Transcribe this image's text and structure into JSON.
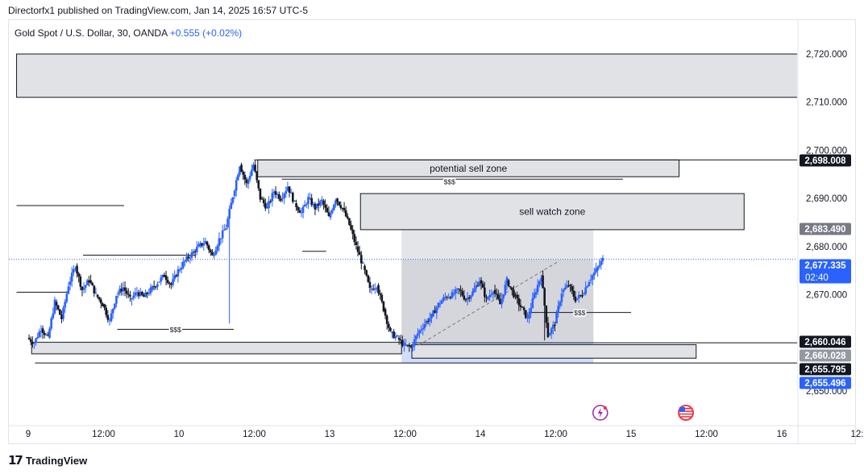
{
  "header": {
    "published": "Directorfx1 published on TradingView.com, Jan 14, 2025 16:57 UTC-5"
  },
  "legend": {
    "symbol": "Gold Spot / U.S. Dollar, 30, OANDA",
    "change": "+0.555 (+0.02%)"
  },
  "footer": {
    "brand": "TradingView"
  },
  "colors": {
    "up": "#2962ff",
    "down": "#131722",
    "zone_fill": "#e1e2e6",
    "zone_stroke": "#131722",
    "range_fill": "#b2b5be",
    "range_fill_blue": "#b3c6ff",
    "price_line": "#2962ff"
  },
  "chart_data": {
    "type": "candlestick",
    "symbol": "XAUUSD",
    "timeframe": "30",
    "ylim": [
      2649,
      2724
    ],
    "y_ticks": [
      2720,
      2710,
      2700,
      2690,
      2680,
      2670,
      2660,
      2650
    ],
    "y_tick_labels": [
      "2,720.000",
      "2,710.000",
      "2,700.000",
      "2,690.000",
      "2,680.000",
      "2,670.000",
      "",
      "2,650.000"
    ],
    "x_ticks": [
      {
        "t": 0,
        "label": "9"
      },
      {
        "t": 11,
        "label": "12:00"
      },
      {
        "t": 22,
        "label": "10"
      },
      {
        "t": 33,
        "label": "12:00"
      },
      {
        "t": 44,
        "label": "13"
      },
      {
        "t": 55,
        "label": "12:00"
      },
      {
        "t": 66,
        "label": "14"
      },
      {
        "t": 77,
        "label": "12:00"
      },
      {
        "t": 88,
        "label": "15"
      },
      {
        "t": 99,
        "label": "12:00"
      },
      {
        "t": 110,
        "label": "16"
      },
      {
        "t": 121,
        "label": "12:"
      }
    ],
    "x_range": [
      -1.7,
      122.5
    ],
    "ohlc_path": [
      [
        0,
        2661.0
      ],
      [
        1,
        2660.0
      ],
      [
        2,
        2663.0
      ],
      [
        3,
        2661.0
      ],
      [
        4,
        2668.5
      ],
      [
        5,
        2665.0
      ],
      [
        6,
        2672.0
      ],
      [
        7,
        2676.0
      ],
      [
        8,
        2671.0
      ],
      [
        9,
        2673.0
      ],
      [
        10,
        2670.0
      ],
      [
        11,
        2668.0
      ],
      [
        12,
        2664.5
      ],
      [
        13,
        2670.0
      ],
      [
        14,
        2671.5
      ],
      [
        15,
        2669.0
      ],
      [
        16,
        2670.5
      ],
      [
        17,
        2669.5
      ],
      [
        18,
        2671.0
      ],
      [
        19,
        2672.5
      ],
      [
        20,
        2674.0
      ],
      [
        21,
        2672.0
      ],
      [
        22,
        2675.0
      ],
      [
        23,
        2677.0
      ],
      [
        24,
        2678.5
      ],
      [
        25,
        2680.0
      ],
      [
        26,
        2681.0
      ],
      [
        27,
        2678.0
      ],
      [
        28,
        2681.5
      ],
      [
        29,
        2684.0
      ],
      [
        30,
        2690.5
      ],
      [
        31,
        2697.0
      ],
      [
        32,
        2693.0
      ],
      [
        33,
        2697.0
      ],
      [
        34,
        2690.0
      ],
      [
        35,
        2688.0
      ],
      [
        36,
        2691.5
      ],
      [
        37,
        2690.0
      ],
      [
        38,
        2692.5
      ],
      [
        39,
        2689.0
      ],
      [
        40,
        2687.0
      ],
      [
        41,
        2690.0
      ],
      [
        42,
        2688.0
      ],
      [
        43,
        2689.5
      ],
      [
        44,
        2686.0
      ],
      [
        45,
        2690.0
      ],
      [
        46,
        2688.0
      ],
      [
        47,
        2684.5
      ],
      [
        48,
        2680.0
      ],
      [
        49,
        2676.0
      ],
      [
        50,
        2671.0
      ],
      [
        51,
        2672.0
      ],
      [
        52,
        2667.0
      ],
      [
        53,
        2662.0
      ],
      [
        54,
        2661.0
      ],
      [
        55,
        2659.5
      ],
      [
        56,
        2659.0
      ],
      [
        57,
        2662.0
      ],
      [
        58,
        2664.0
      ],
      [
        59,
        2665.5
      ],
      [
        60,
        2668.0
      ],
      [
        61,
        2669.5
      ],
      [
        62,
        2670.0
      ],
      [
        63,
        2671.0
      ],
      [
        64,
        2669.0
      ],
      [
        65,
        2670.5
      ],
      [
        66,
        2673.0
      ],
      [
        67,
        2669.0
      ],
      [
        68,
        2671.0
      ],
      [
        69,
        2668.0
      ],
      [
        70,
        2673.0
      ],
      [
        71,
        2670.0
      ],
      [
        72,
        2667.5
      ],
      [
        73,
        2665.0
      ],
      [
        74,
        2670.0
      ],
      [
        75,
        2674.0
      ],
      [
        76,
        2661.5
      ],
      [
        77,
        2664.0
      ],
      [
        78,
        2670.5
      ],
      [
        79,
        2672.0
      ],
      [
        80,
        2669.0
      ],
      [
        81,
        2670.0
      ],
      [
        82,
        2673.0
      ],
      [
        83,
        2675.0
      ],
      [
        84,
        2677.3
      ]
    ],
    "sharp_wicks": [
      {
        "i": 30,
        "low": 2664.0
      },
      {
        "i": 52,
        "low": 2669.0
      },
      {
        "i": 76,
        "low": 2660.5
      }
    ],
    "zones": [
      {
        "x0": -1.7,
        "x1": 122.5,
        "y0": 2711.0,
        "y1": 2720.0
      },
      {
        "x0": 33.5,
        "x1": 95.0,
        "y0": 2694.5,
        "y1": 2698.0,
        "label": "potential sell zone"
      },
      {
        "x0": 48.5,
        "x1": 104.5,
        "y0": 2683.5,
        "y1": 2691.0,
        "label": "sell watch zone"
      },
      {
        "x0": 0.5,
        "x1": 54.5,
        "y0": 2657.7,
        "y1": 2660.1
      },
      {
        "x0": 56.0,
        "x1": 97.5,
        "y0": 2656.8,
        "y1": 2659.6
      }
    ],
    "range_box": {
      "x0": 54.5,
      "x1": 82.5,
      "y_top": 2683.5,
      "y_mid": 2677.3,
      "y_bottom": 2655.8
    },
    "lines": [
      {
        "x0": -1.7,
        "x1": 14.0,
        "y": 2688.5
      },
      {
        "x0": -1.7,
        "x1": 6.0,
        "y": 2670.5
      },
      {
        "x0": 8.0,
        "x1": 24.5,
        "y": 2678.2
      },
      {
        "x0": 37.0,
        "x1": 86.8,
        "y": 2694.0
      },
      {
        "x0": 40.0,
        "x1": 43.5,
        "y": 2679.0
      },
      {
        "x0": 13.0,
        "x1": 30.0,
        "y": 2662.8
      },
      {
        "x0": 73.0,
        "x1": 88.0,
        "y": 2666.3
      },
      {
        "x0": 33.0,
        "x1": 122.5,
        "y": 2698.0
      },
      {
        "x0": 56.0,
        "x1": 122.5,
        "y": 2660.0
      },
      {
        "x0": 1.0,
        "x1": 122.5,
        "y": 2655.8
      }
    ],
    "liquidity_labels": [
      {
        "x": 21.5,
        "y": 2662.8,
        "text": "$$$"
      },
      {
        "x": 61.5,
        "y": 2693.5,
        "text": "$$$"
      },
      {
        "x": 80.5,
        "y": 2666.3,
        "text": "$$$"
      }
    ],
    "trend_line": {
      "x0": 57.0,
      "y0": 2659.5,
      "x1": 77.5,
      "y1": 2677.0
    },
    "current_price_line": 2677.335,
    "price_tags": [
      {
        "value": 2698.008,
        "text": "2,698.008",
        "sub": "",
        "bg": "#131722",
        "fg": "#ffffff"
      },
      {
        "value": 2683.49,
        "text": "2,683.490",
        "sub": "",
        "bg": "#787b86",
        "fg": "#ffffff"
      },
      {
        "value": 2677.335,
        "text": "2,677.335",
        "sub": "02:40",
        "bg": "#2962ff",
        "fg": "#ffffff"
      },
      {
        "value": 2660.046,
        "text": "2,660.046",
        "sub": "",
        "bg": "#131722",
        "fg": "#ffffff"
      },
      {
        "value": 2660.028,
        "text": "2,660.028",
        "sub": "",
        "bg": "#9598a1",
        "fg": "#ffffff"
      },
      {
        "value": 2655.795,
        "text": "2,655.795",
        "sub": "",
        "bg": "#131722",
        "fg": "#ffffff"
      },
      {
        "value": 2655.496,
        "text": "2,655.496",
        "sub": "",
        "bg": "#2962ff",
        "fg": "#ffffff"
      }
    ],
    "event_icons": [
      {
        "t": 83.5,
        "kind": "lightning-icon"
      },
      {
        "t": 96.0,
        "kind": "us-flag-icon"
      },
      {
        "t": 116.0,
        "kind": "us-flag-icon"
      }
    ]
  }
}
